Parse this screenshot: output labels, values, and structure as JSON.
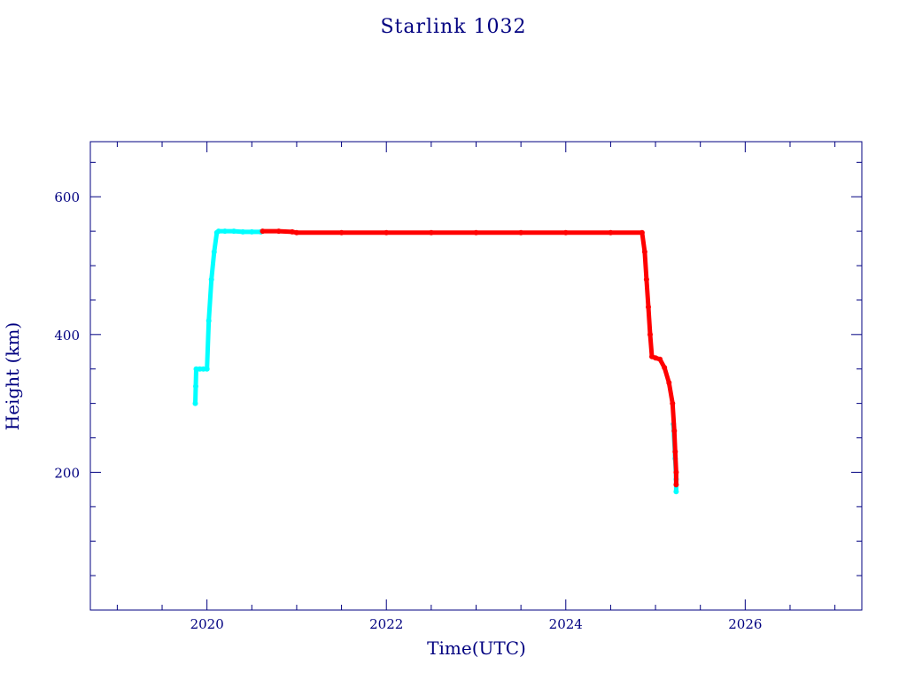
{
  "chart_data": {
    "type": "scatter",
    "title": "Starlink 1032",
    "xlabel": "Time(UTC)",
    "ylabel": "Height (km)",
    "xlim": [
      2018.7,
      2027.3
    ],
    "ylim": [
      0,
      680
    ],
    "x_ticks": [
      2020,
      2022,
      2024,
      2026
    ],
    "x_tick_labels": [
      "2020",
      "2022",
      "2024",
      "2026"
    ],
    "y_ticks": [
      200,
      400,
      600
    ],
    "y_tick_labels": [
      "200",
      "400",
      "600"
    ],
    "grid": false,
    "series": [
      {
        "color": "#00ffff",
        "points": [
          [
            2019.87,
            300
          ],
          [
            2019.875,
            325
          ],
          [
            2019.88,
            350
          ],
          [
            2019.92,
            350
          ],
          [
            2019.96,
            350
          ],
          [
            2020.0,
            350
          ],
          [
            2020.02,
            420
          ],
          [
            2020.05,
            480
          ],
          [
            2020.08,
            520
          ],
          [
            2020.11,
            548
          ],
          [
            2020.13,
            550
          ],
          [
            2020.2,
            550
          ],
          [
            2020.3,
            550
          ],
          [
            2020.4,
            549
          ],
          [
            2020.5,
            549
          ],
          [
            2020.6,
            549
          ],
          [
            2025.2,
            270
          ],
          [
            2025.22,
            220
          ],
          [
            2025.23,
            190
          ],
          [
            2025.23,
            172
          ]
        ]
      },
      {
        "color": "#ff0000",
        "points": [
          [
            2020.62,
            550
          ],
          [
            2020.8,
            550
          ],
          [
            2020.95,
            549
          ],
          [
            2021.0,
            548
          ],
          [
            2021.5,
            548
          ],
          [
            2022.0,
            548
          ],
          [
            2022.5,
            548
          ],
          [
            2023.0,
            548
          ],
          [
            2023.5,
            548
          ],
          [
            2024.0,
            548
          ],
          [
            2024.5,
            548
          ],
          [
            2024.85,
            548
          ],
          [
            2024.88,
            520
          ],
          [
            2024.9,
            480
          ],
          [
            2024.92,
            440
          ],
          [
            2024.94,
            400
          ],
          [
            2024.96,
            368
          ],
          [
            2025.0,
            366
          ],
          [
            2025.05,
            364
          ],
          [
            2025.1,
            352
          ],
          [
            2025.15,
            330
          ],
          [
            2025.19,
            300
          ],
          [
            2025.21,
            260
          ],
          [
            2025.22,
            230
          ],
          [
            2025.23,
            200
          ],
          [
            2025.23,
            182
          ]
        ]
      }
    ]
  }
}
